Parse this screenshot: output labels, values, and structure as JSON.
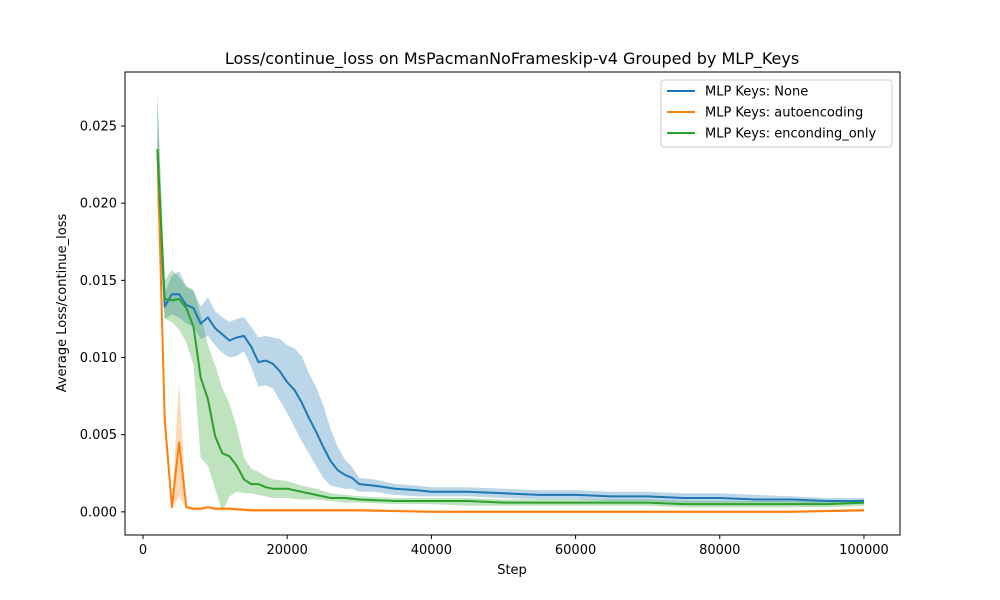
{
  "chart_data": {
    "type": "line",
    "title": "Loss/continue_loss on MsPacmanNoFrameskip-v4 Grouped by MLP_Keys",
    "xlabel": "Step",
    "ylabel": "Average Loss/continue_loss",
    "xlim": [
      -2500,
      105000
    ],
    "ylim": [
      -0.0015,
      0.0285
    ],
    "xticks": [
      0,
      20000,
      40000,
      60000,
      80000,
      100000
    ],
    "xtick_labels": [
      "0",
      "20000",
      "40000",
      "60000",
      "80000",
      "100000"
    ],
    "yticks": [
      0.0,
      0.005,
      0.01,
      0.015,
      0.02,
      0.025
    ],
    "ytick_labels": [
      "0.000",
      "0.005",
      "0.010",
      "0.015",
      "0.020",
      "0.025"
    ],
    "grid": false,
    "legend_position": "top-right",
    "series": [
      {
        "name": "MLP Keys: None",
        "color": "#1f77b4",
        "x": [
          2000,
          3000,
          4000,
          5000,
          6000,
          7000,
          8000,
          9000,
          10000,
          11000,
          12000,
          13000,
          14000,
          15000,
          16000,
          17000,
          18000,
          19000,
          20000,
          21000,
          22000,
          23000,
          24000,
          25000,
          26000,
          27000,
          28000,
          29000,
          30000,
          32000,
          35000,
          38000,
          40000,
          45000,
          50000,
          55000,
          60000,
          65000,
          70000,
          75000,
          80000,
          85000,
          90000,
          95000,
          100000
        ],
        "y": [
          0.0235,
          0.0133,
          0.0141,
          0.0141,
          0.0134,
          0.0132,
          0.0122,
          0.0126,
          0.0119,
          0.0115,
          0.0111,
          0.0113,
          0.0114,
          0.0107,
          0.0097,
          0.0098,
          0.0096,
          0.0091,
          0.0084,
          0.0079,
          0.0071,
          0.0061,
          0.0052,
          0.0042,
          0.0033,
          0.0027,
          0.0024,
          0.0022,
          0.0018,
          0.0017,
          0.0015,
          0.0014,
          0.0013,
          0.0013,
          0.0012,
          0.0011,
          0.0011,
          0.001,
          0.001,
          0.0009,
          0.0009,
          0.0008,
          0.0008,
          0.0007,
          0.0007
        ],
        "lower": [
          0.02,
          0.0125,
          0.0128,
          0.0126,
          0.0122,
          0.012,
          0.0112,
          0.0114,
          0.0108,
          0.0103,
          0.01,
          0.0101,
          0.0104,
          0.0094,
          0.0081,
          0.0082,
          0.008,
          0.0072,
          0.0064,
          0.0055,
          0.0046,
          0.0038,
          0.003,
          0.0022,
          0.0017,
          0.0016,
          0.0015,
          0.0015,
          0.0013,
          0.0013,
          0.0011,
          0.001,
          0.001,
          0.001,
          0.0009,
          0.0008,
          0.0008,
          0.0007,
          0.0007,
          0.0006,
          0.0006,
          0.0006,
          0.0006,
          0.0005,
          0.0005
        ],
        "upper": [
          0.027,
          0.0142,
          0.0153,
          0.0156,
          0.0146,
          0.0143,
          0.0133,
          0.0139,
          0.013,
          0.0126,
          0.0123,
          0.0125,
          0.0126,
          0.012,
          0.0113,
          0.0114,
          0.0113,
          0.0112,
          0.0108,
          0.0106,
          0.0101,
          0.009,
          0.0081,
          0.0069,
          0.0054,
          0.0042,
          0.0034,
          0.0029,
          0.0022,
          0.0021,
          0.0018,
          0.0017,
          0.0016,
          0.0016,
          0.0015,
          0.0014,
          0.0014,
          0.0013,
          0.0013,
          0.0012,
          0.0012,
          0.0011,
          0.001,
          0.0009,
          0.0009
        ]
      },
      {
        "name": "MLP Keys: autoencoding",
        "color": "#ff7f0e",
        "x": [
          2000,
          3000,
          4000,
          5000,
          6000,
          7000,
          8000,
          9000,
          10000,
          12000,
          15000,
          20000,
          25000,
          30000,
          40000,
          50000,
          60000,
          70000,
          80000,
          90000,
          100000
        ],
        "y": [
          0.0235,
          0.006,
          0.0003,
          0.0045,
          0.0003,
          0.0002,
          0.0002,
          0.0003,
          0.0002,
          0.0002,
          0.0001,
          0.0001,
          0.0001,
          0.0001,
          0.0,
          0.0,
          0.0,
          0.0,
          0.0,
          0.0,
          0.0001
        ],
        "lower": [
          0.0215,
          0.005,
          0.0002,
          0.001,
          0.0002,
          0.0001,
          0.0001,
          0.0002,
          0.0001,
          0.0001,
          0.0,
          0.0,
          0.0,
          0.0,
          0.0,
          0.0,
          0.0,
          0.0,
          0.0,
          0.0,
          0.0
        ],
        "upper": [
          0.0245,
          0.007,
          0.0004,
          0.0084,
          0.0004,
          0.0003,
          0.0003,
          0.0004,
          0.0003,
          0.0003,
          0.0002,
          0.0002,
          0.0002,
          0.0002,
          0.0001,
          0.0001,
          0.0001,
          0.0001,
          0.0001,
          0.0001,
          0.0002
        ]
      },
      {
        "name": "MLP Keys: enconding_only",
        "color": "#2ca02c",
        "x": [
          2000,
          3000,
          4000,
          5000,
          6000,
          7000,
          8000,
          9000,
          10000,
          11000,
          12000,
          13000,
          14000,
          15000,
          16000,
          17000,
          18000,
          20000,
          22000,
          24000,
          26000,
          28000,
          30000,
          35000,
          40000,
          45000,
          50000,
          55000,
          60000,
          65000,
          70000,
          75000,
          80000,
          85000,
          90000,
          95000,
          100000
        ],
        "y": [
          0.0235,
          0.0138,
          0.0137,
          0.0138,
          0.0132,
          0.012,
          0.0087,
          0.0073,
          0.0049,
          0.0038,
          0.0036,
          0.003,
          0.0021,
          0.0018,
          0.0018,
          0.0016,
          0.0015,
          0.0015,
          0.0013,
          0.0011,
          0.0009,
          0.0009,
          0.0008,
          0.0007,
          0.0007,
          0.0007,
          0.0006,
          0.0006,
          0.0006,
          0.0006,
          0.0006,
          0.0005,
          0.0005,
          0.0005,
          0.0005,
          0.0005,
          0.0006
        ],
        "lower": [
          0.02,
          0.0125,
          0.0123,
          0.0118,
          0.011,
          0.0095,
          0.0035,
          0.003,
          0.0015,
          0.0,
          0.001,
          0.0013,
          0.0012,
          0.0012,
          0.0011,
          0.001,
          0.0009,
          0.0009,
          0.0008,
          0.0008,
          0.0007,
          0.0006,
          0.0006,
          0.0005,
          0.0005,
          0.0004,
          0.0004,
          0.0004,
          0.0004,
          0.0004,
          0.0004,
          0.0003,
          0.0003,
          0.0003,
          0.0003,
          0.0003,
          0.0004
        ],
        "upper": [
          0.0272,
          0.015,
          0.0157,
          0.0152,
          0.0146,
          0.0144,
          0.0128,
          0.0108,
          0.0095,
          0.008,
          0.007,
          0.0055,
          0.0035,
          0.0028,
          0.0026,
          0.0023,
          0.0021,
          0.002,
          0.0017,
          0.0015,
          0.0012,
          0.0011,
          0.001,
          0.0009,
          0.0009,
          0.0009,
          0.0008,
          0.0008,
          0.0008,
          0.0008,
          0.0008,
          0.0007,
          0.0007,
          0.0007,
          0.0007,
          0.0007,
          0.0008
        ]
      }
    ]
  }
}
